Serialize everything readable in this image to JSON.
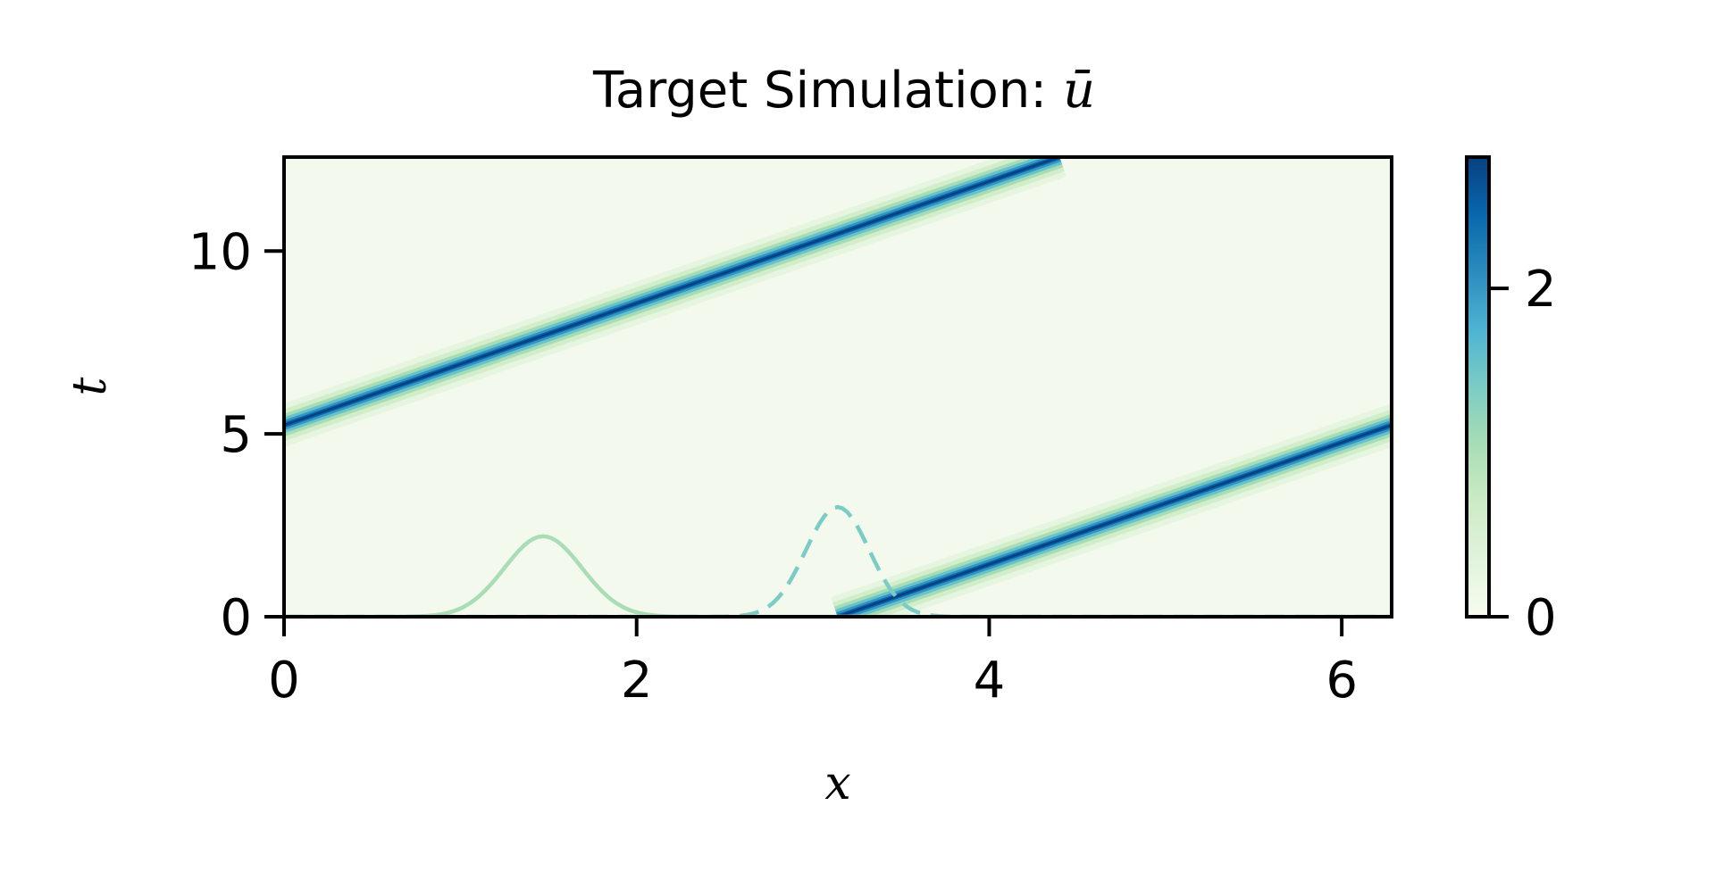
{
  "chart_data": {
    "type": "heatmap",
    "title_text": "Target Simulation: ",
    "title_symbol": "ū",
    "xlabel": "x",
    "ylabel": "t",
    "xlim": [
      0,
      6.283
    ],
    "ylim": [
      0,
      12.57
    ],
    "x_ticks": [
      {
        "value": 0,
        "label": "0"
      },
      {
        "value": 2,
        "label": "2"
      },
      {
        "value": 4,
        "label": "4"
      },
      {
        "value": 6,
        "label": "6"
      }
    ],
    "y_ticks": [
      {
        "value": 0,
        "label": "0"
      },
      {
        "value": 5,
        "label": "5"
      },
      {
        "value": 10,
        "label": "10"
      }
    ],
    "colormap": "GnBu",
    "colormap_stops": [
      "#f7fcf0",
      "#e0f3db",
      "#ccebc5",
      "#a8ddb5",
      "#7bccc4",
      "#4eb3d3",
      "#2b8cbe",
      "#0868ac",
      "#084081"
    ],
    "background_color": "#f4f9ee",
    "color_range": [
      0,
      2.8
    ],
    "colorbar_ticks": [
      {
        "value": 0,
        "label": "0"
      },
      {
        "value": 2,
        "label": "2"
      }
    ],
    "wave": {
      "amplitude": 2.8,
      "width": 0.09,
      "speed": 0.6,
      "x0_at_t0": 3.14,
      "period_x": 6.283
    },
    "initial_profile": {
      "color": "#a8ddb5",
      "style": "solid",
      "center": 1.47,
      "peak_t": 2.2,
      "sigma": 0.22
    },
    "target_profile": {
      "color": "#7bccc4",
      "style": "dashed",
      "center": 3.14,
      "peak_t": 3.0,
      "sigma": 0.18
    }
  }
}
